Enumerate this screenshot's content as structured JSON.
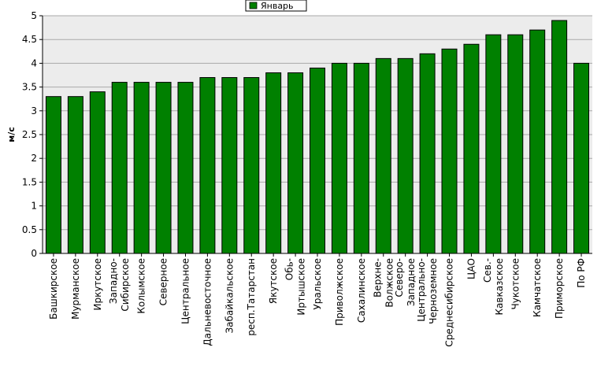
{
  "chart_data": {
    "type": "bar",
    "ylabel": "м/с",
    "ylim": [
      0,
      5
    ],
    "yticks": [
      0,
      0.5,
      1,
      1.5,
      2,
      2.5,
      3,
      3.5,
      4,
      4.5,
      5
    ],
    "ytick_labels": [
      "0",
      "0.5",
      "1",
      "1.5",
      "2",
      "2.5",
      "3",
      "3.5",
      "4",
      "4.5",
      "5"
    ],
    "grid": true,
    "legend_position": "top-center",
    "series": [
      {
        "name": "Январь",
        "color": "#008000",
        "values": [
          3.3,
          3.3,
          3.4,
          3.6,
          3.6,
          3.6,
          3.6,
          3.7,
          3.7,
          3.7,
          3.8,
          3.8,
          3.9,
          4.0,
          4.0,
          4.1,
          4.1,
          4.2,
          4.3,
          4.4,
          4.6,
          4.6,
          4.7,
          4.9,
          4.0
        ]
      }
    ],
    "categories": [
      [
        "Башкирское"
      ],
      [
        "Мурманское"
      ],
      [
        "Иркутское"
      ],
      [
        "Западно-",
        "Сибирское"
      ],
      [
        "Колымское"
      ],
      [
        "Северное"
      ],
      [
        "Центральное"
      ],
      [
        "Дальневосточное"
      ],
      [
        "Забайкальское"
      ],
      [
        "респ.Татарстан"
      ],
      [
        "Якутское"
      ],
      [
        "Обь-",
        "Иртышское"
      ],
      [
        "Уральское"
      ],
      [
        "Приволжское"
      ],
      [
        "Сахалинское"
      ],
      [
        "Верхне-",
        "Волжское"
      ],
      [
        "Северо-",
        "Западное"
      ],
      [
        "Центрально-",
        "Черноземное"
      ],
      [
        "Среднесибирское"
      ],
      [
        "ЦАО"
      ],
      [
        "Сев.-",
        "Кавказское"
      ],
      [
        "Чукотское"
      ],
      [
        "Камчатское"
      ],
      [
        "Приморское"
      ],
      [
        "По РФ"
      ]
    ]
  }
}
